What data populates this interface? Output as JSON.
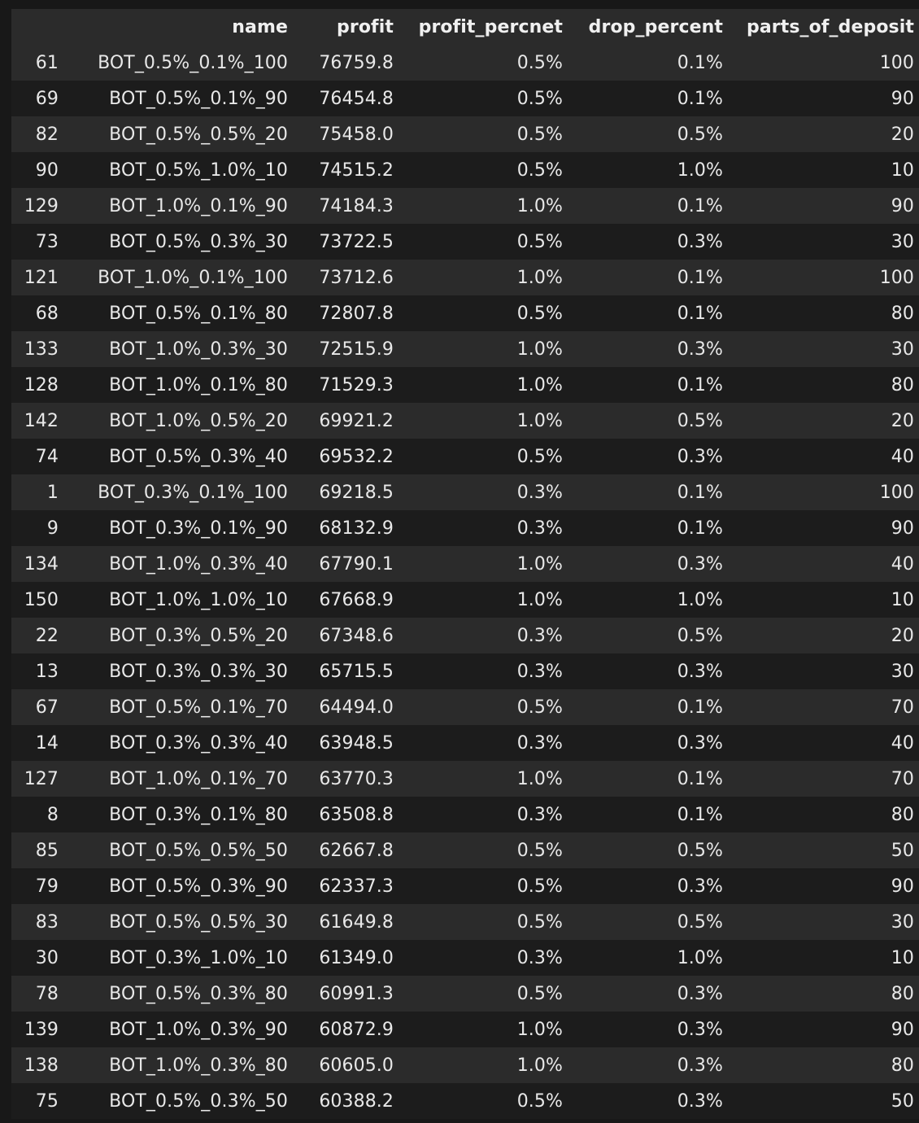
{
  "table": {
    "columns": [
      "",
      "name",
      "profit",
      "profit_percnet",
      "drop_percent",
      "parts_of_deposit"
    ],
    "rows": [
      {
        "index": "61",
        "name": "BOT_0.5%_0.1%_100",
        "profit": "76759.8",
        "profit_percnet": "0.5%",
        "drop_percent": "0.1%",
        "parts_of_deposit": "100"
      },
      {
        "index": "69",
        "name": "BOT_0.5%_0.1%_90",
        "profit": "76454.8",
        "profit_percnet": "0.5%",
        "drop_percent": "0.1%",
        "parts_of_deposit": "90"
      },
      {
        "index": "82",
        "name": "BOT_0.5%_0.5%_20",
        "profit": "75458.0",
        "profit_percnet": "0.5%",
        "drop_percent": "0.5%",
        "parts_of_deposit": "20"
      },
      {
        "index": "90",
        "name": "BOT_0.5%_1.0%_10",
        "profit": "74515.2",
        "profit_percnet": "0.5%",
        "drop_percent": "1.0%",
        "parts_of_deposit": "10"
      },
      {
        "index": "129",
        "name": "BOT_1.0%_0.1%_90",
        "profit": "74184.3",
        "profit_percnet": "1.0%",
        "drop_percent": "0.1%",
        "parts_of_deposit": "90"
      },
      {
        "index": "73",
        "name": "BOT_0.5%_0.3%_30",
        "profit": "73722.5",
        "profit_percnet": "0.5%",
        "drop_percent": "0.3%",
        "parts_of_deposit": "30"
      },
      {
        "index": "121",
        "name": "BOT_1.0%_0.1%_100",
        "profit": "73712.6",
        "profit_percnet": "1.0%",
        "drop_percent": "0.1%",
        "parts_of_deposit": "100"
      },
      {
        "index": "68",
        "name": "BOT_0.5%_0.1%_80",
        "profit": "72807.8",
        "profit_percnet": "0.5%",
        "drop_percent": "0.1%",
        "parts_of_deposit": "80"
      },
      {
        "index": "133",
        "name": "BOT_1.0%_0.3%_30",
        "profit": "72515.9",
        "profit_percnet": "1.0%",
        "drop_percent": "0.3%",
        "parts_of_deposit": "30"
      },
      {
        "index": "128",
        "name": "BOT_1.0%_0.1%_80",
        "profit": "71529.3",
        "profit_percnet": "1.0%",
        "drop_percent": "0.1%",
        "parts_of_deposit": "80"
      },
      {
        "index": "142",
        "name": "BOT_1.0%_0.5%_20",
        "profit": "69921.2",
        "profit_percnet": "1.0%",
        "drop_percent": "0.5%",
        "parts_of_deposit": "20"
      },
      {
        "index": "74",
        "name": "BOT_0.5%_0.3%_40",
        "profit": "69532.2",
        "profit_percnet": "0.5%",
        "drop_percent": "0.3%",
        "parts_of_deposit": "40"
      },
      {
        "index": "1",
        "name": "BOT_0.3%_0.1%_100",
        "profit": "69218.5",
        "profit_percnet": "0.3%",
        "drop_percent": "0.1%",
        "parts_of_deposit": "100"
      },
      {
        "index": "9",
        "name": "BOT_0.3%_0.1%_90",
        "profit": "68132.9",
        "profit_percnet": "0.3%",
        "drop_percent": "0.1%",
        "parts_of_deposit": "90"
      },
      {
        "index": "134",
        "name": "BOT_1.0%_0.3%_40",
        "profit": "67790.1",
        "profit_percnet": "1.0%",
        "drop_percent": "0.3%",
        "parts_of_deposit": "40"
      },
      {
        "index": "150",
        "name": "BOT_1.0%_1.0%_10",
        "profit": "67668.9",
        "profit_percnet": "1.0%",
        "drop_percent": "1.0%",
        "parts_of_deposit": "10"
      },
      {
        "index": "22",
        "name": "BOT_0.3%_0.5%_20",
        "profit": "67348.6",
        "profit_percnet": "0.3%",
        "drop_percent": "0.5%",
        "parts_of_deposit": "20"
      },
      {
        "index": "13",
        "name": "BOT_0.3%_0.3%_30",
        "profit": "65715.5",
        "profit_percnet": "0.3%",
        "drop_percent": "0.3%",
        "parts_of_deposit": "30"
      },
      {
        "index": "67",
        "name": "BOT_0.5%_0.1%_70",
        "profit": "64494.0",
        "profit_percnet": "0.5%",
        "drop_percent": "0.1%",
        "parts_of_deposit": "70"
      },
      {
        "index": "14",
        "name": "BOT_0.3%_0.3%_40",
        "profit": "63948.5",
        "profit_percnet": "0.3%",
        "drop_percent": "0.3%",
        "parts_of_deposit": "40"
      },
      {
        "index": "127",
        "name": "BOT_1.0%_0.1%_70",
        "profit": "63770.3",
        "profit_percnet": "1.0%",
        "drop_percent": "0.1%",
        "parts_of_deposit": "70"
      },
      {
        "index": "8",
        "name": "BOT_0.3%_0.1%_80",
        "profit": "63508.8",
        "profit_percnet": "0.3%",
        "drop_percent": "0.1%",
        "parts_of_deposit": "80"
      },
      {
        "index": "85",
        "name": "BOT_0.5%_0.5%_50",
        "profit": "62667.8",
        "profit_percnet": "0.5%",
        "drop_percent": "0.5%",
        "parts_of_deposit": "50"
      },
      {
        "index": "79",
        "name": "BOT_0.5%_0.3%_90",
        "profit": "62337.3",
        "profit_percnet": "0.5%",
        "drop_percent": "0.3%",
        "parts_of_deposit": "90"
      },
      {
        "index": "83",
        "name": "BOT_0.5%_0.5%_30",
        "profit": "61649.8",
        "profit_percnet": "0.5%",
        "drop_percent": "0.5%",
        "parts_of_deposit": "30"
      },
      {
        "index": "30",
        "name": "BOT_0.3%_1.0%_10",
        "profit": "61349.0",
        "profit_percnet": "0.3%",
        "drop_percent": "1.0%",
        "parts_of_deposit": "10"
      },
      {
        "index": "78",
        "name": "BOT_0.5%_0.3%_80",
        "profit": "60991.3",
        "profit_percnet": "0.5%",
        "drop_percent": "0.3%",
        "parts_of_deposit": "80"
      },
      {
        "index": "139",
        "name": "BOT_1.0%_0.3%_90",
        "profit": "60872.9",
        "profit_percnet": "1.0%",
        "drop_percent": "0.3%",
        "parts_of_deposit": "90"
      },
      {
        "index": "138",
        "name": "BOT_1.0%_0.3%_80",
        "profit": "60605.0",
        "profit_percnet": "1.0%",
        "drop_percent": "0.3%",
        "parts_of_deposit": "80"
      },
      {
        "index": "75",
        "name": "BOT_0.5%_0.3%_50",
        "profit": "60388.2",
        "profit_percnet": "0.5%",
        "drop_percent": "0.3%",
        "parts_of_deposit": "50"
      }
    ]
  }
}
